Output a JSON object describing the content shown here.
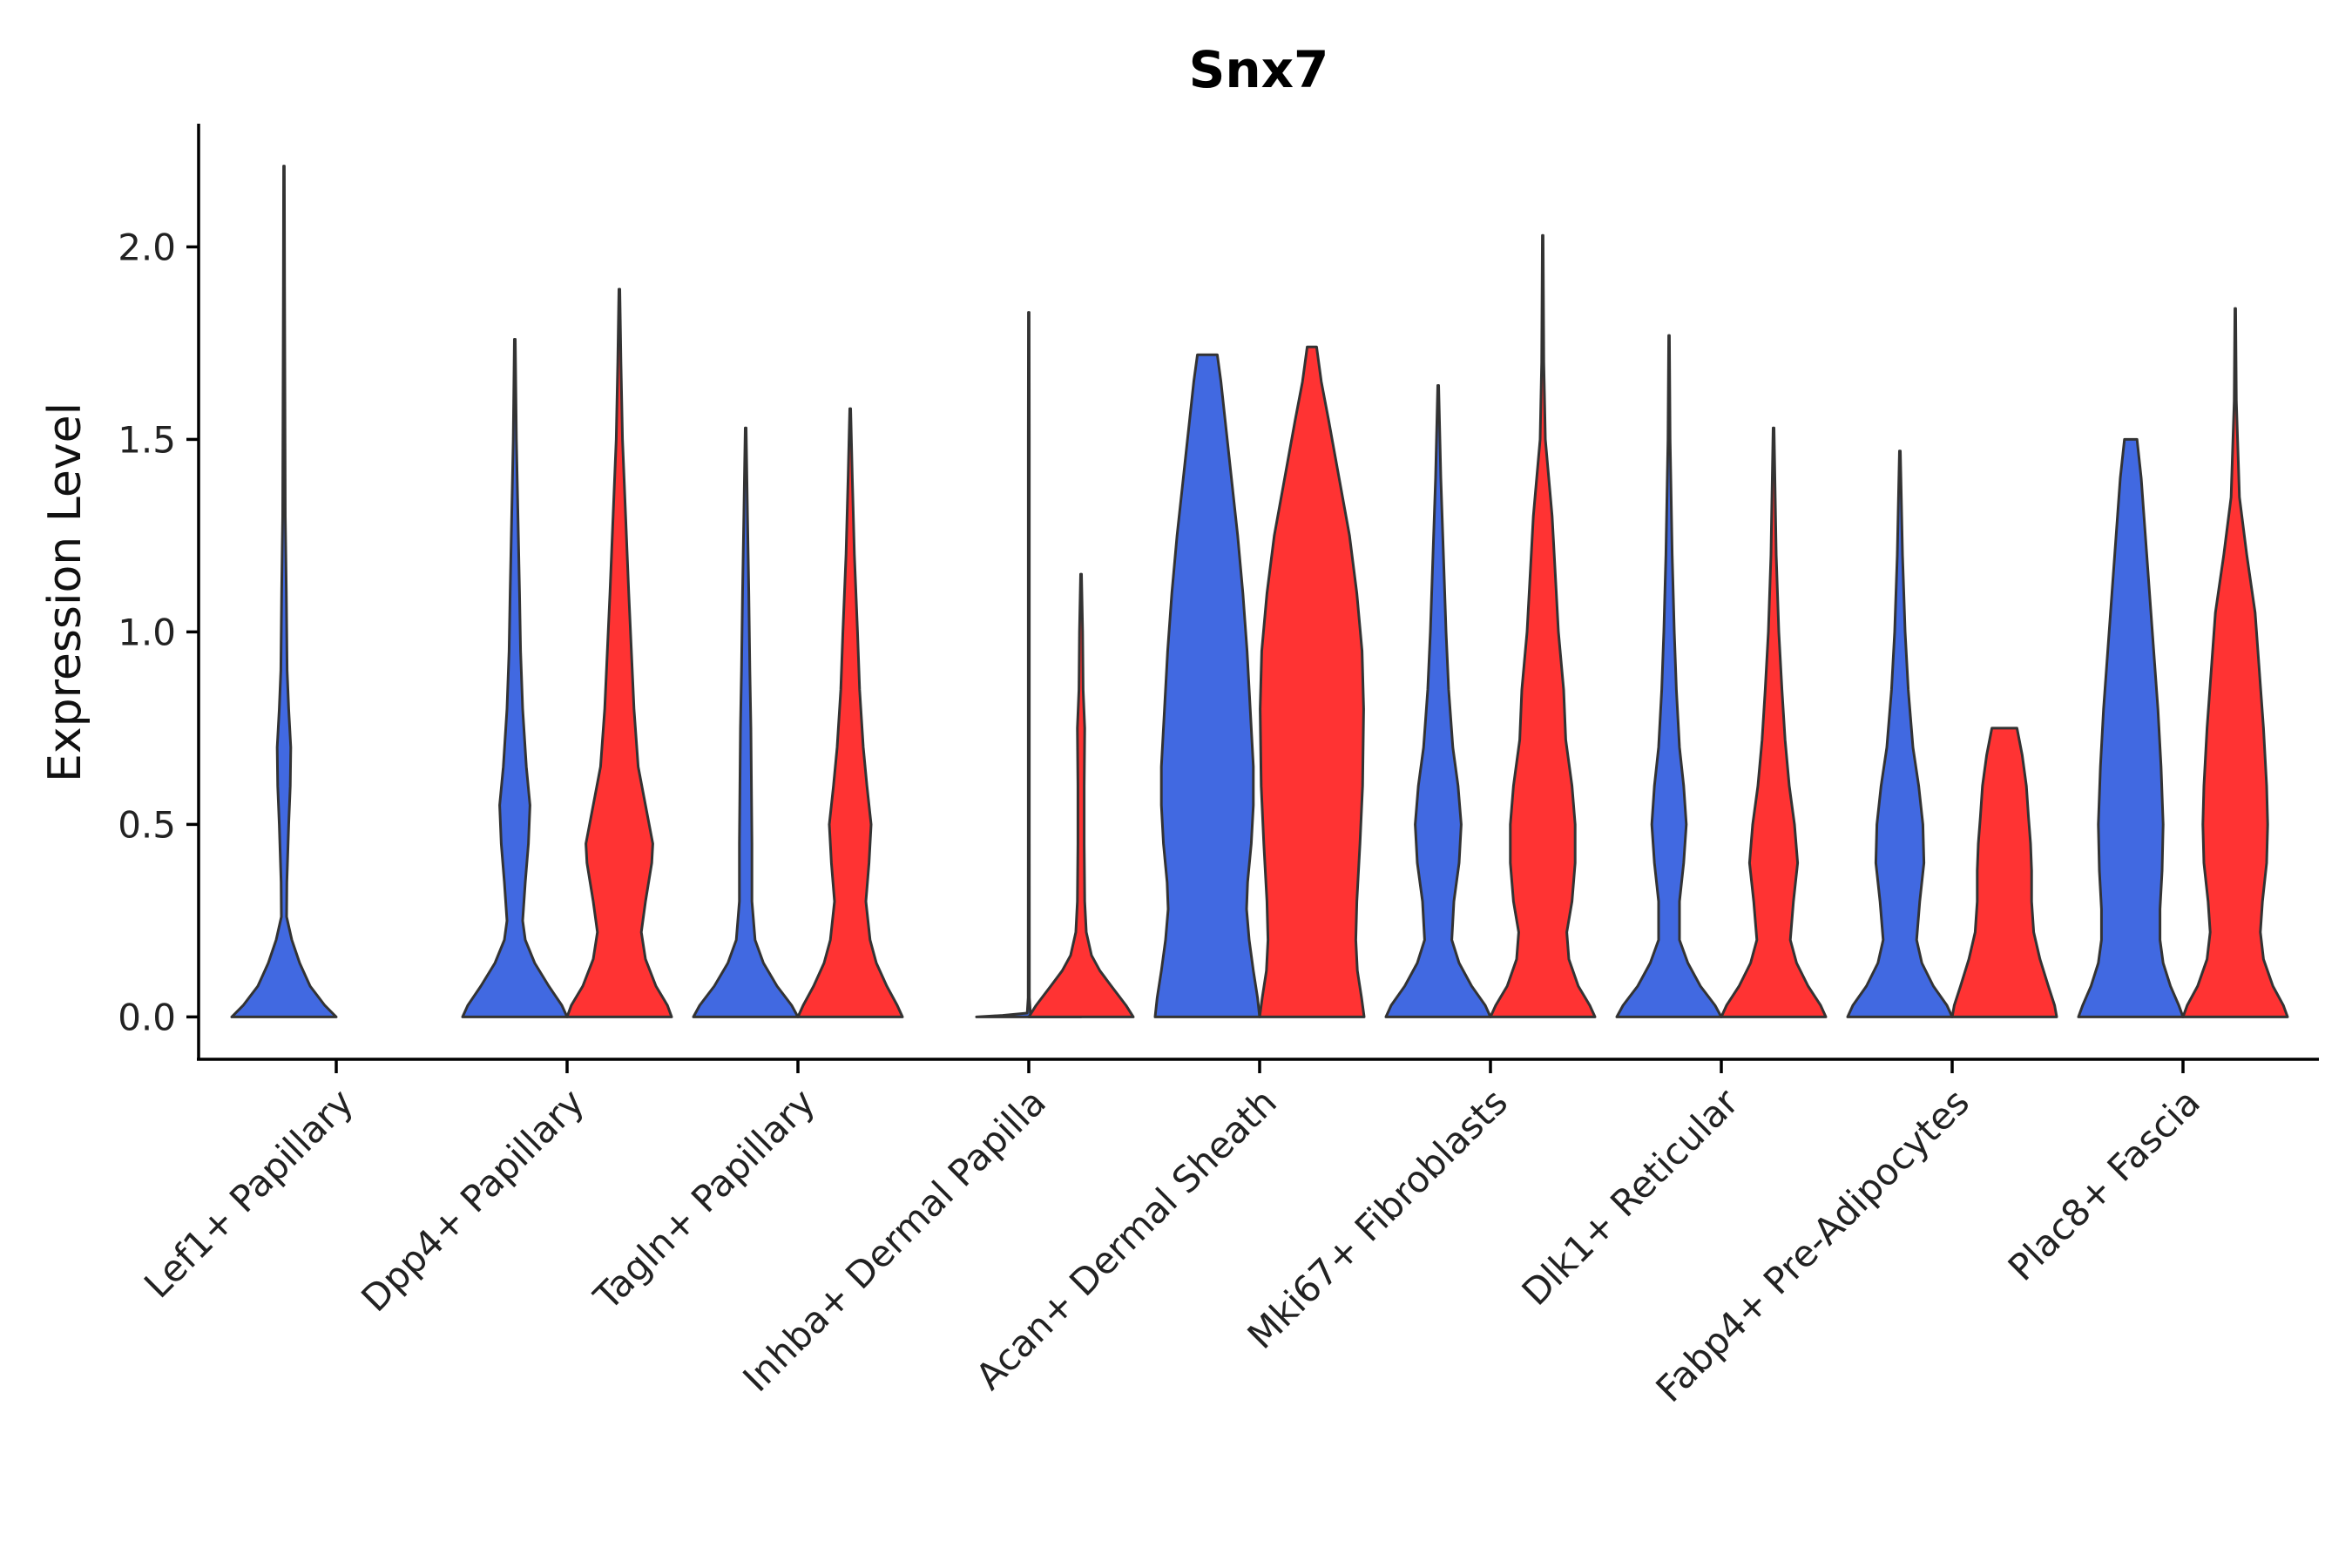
{
  "chart_data": {
    "type": "violin",
    "title": "Snx7",
    "xlabel": "",
    "ylabel": "Expression Level",
    "ylim": [
      -0.11,
      2.32
    ],
    "yticks": [
      0.0,
      0.5,
      1.0,
      1.5,
      2.0
    ],
    "ytick_labels": [
      "0.0",
      "0.5",
      "1.0",
      "1.5",
      "2.0"
    ],
    "colors": {
      "blue": "#4169E1",
      "red": "#FF3333",
      "outline": "#333333"
    },
    "categories": [
      "Lef1+ Papillary",
      "Dpp4+ Papillary",
      "Tagln+ Papillary",
      "Inhba+ Dermal Papilla",
      "Acan+ Dermal Sheath",
      "Mki67+ Fibroblasts",
      "Dlk1+ Reticular",
      "Fabp4+ Pre-Adipocytes",
      "Plac8+ Fascia"
    ],
    "violins": [
      {
        "category": "Lef1+ Papillary",
        "series": "blue",
        "max": 2.21,
        "profile": [
          [
            0,
            1.0
          ],
          [
            0.03,
            0.78
          ],
          [
            0.08,
            0.5
          ],
          [
            0.14,
            0.3
          ],
          [
            0.2,
            0.15
          ],
          [
            0.26,
            0.05
          ],
          [
            0.35,
            0.055
          ],
          [
            0.5,
            0.09
          ],
          [
            0.6,
            0.12
          ],
          [
            0.7,
            0.13
          ],
          [
            0.8,
            0.09
          ],
          [
            0.9,
            0.06
          ],
          [
            1.1,
            0.045
          ],
          [
            1.3,
            0.025
          ],
          [
            1.6,
            0.018
          ],
          [
            1.9,
            0.012
          ],
          [
            2.21,
            0.006
          ]
        ]
      },
      {
        "category": "Dpp4+ Papillary",
        "series": "blue",
        "max": 1.76,
        "profile": [
          [
            0,
            1.0
          ],
          [
            0.03,
            0.9
          ],
          [
            0.08,
            0.65
          ],
          [
            0.14,
            0.38
          ],
          [
            0.2,
            0.2
          ],
          [
            0.25,
            0.15
          ],
          [
            0.35,
            0.2
          ],
          [
            0.45,
            0.26
          ],
          [
            0.55,
            0.29
          ],
          [
            0.65,
            0.22
          ],
          [
            0.8,
            0.15
          ],
          [
            0.95,
            0.11
          ],
          [
            1.1,
            0.09
          ],
          [
            1.3,
            0.06
          ],
          [
            1.5,
            0.03
          ],
          [
            1.76,
            0.008
          ]
        ]
      },
      {
        "category": "Dpp4+ Papillary",
        "series": "red",
        "max": 1.89,
        "profile": [
          [
            0,
            1.0
          ],
          [
            0.03,
            0.92
          ],
          [
            0.08,
            0.7
          ],
          [
            0.15,
            0.5
          ],
          [
            0.22,
            0.42
          ],
          [
            0.3,
            0.5
          ],
          [
            0.4,
            0.62
          ],
          [
            0.45,
            0.64
          ],
          [
            0.55,
            0.5
          ],
          [
            0.65,
            0.36
          ],
          [
            0.8,
            0.28
          ],
          [
            0.95,
            0.23
          ],
          [
            1.1,
            0.18
          ],
          [
            1.3,
            0.12
          ],
          [
            1.5,
            0.06
          ],
          [
            1.7,
            0.03
          ],
          [
            1.89,
            0.008
          ]
        ]
      },
      {
        "category": "Tagln+ Papillary",
        "series": "blue",
        "max": 1.53,
        "profile": [
          [
            0,
            1.0
          ],
          [
            0.03,
            0.88
          ],
          [
            0.08,
            0.6
          ],
          [
            0.14,
            0.34
          ],
          [
            0.2,
            0.18
          ],
          [
            0.3,
            0.12
          ],
          [
            0.45,
            0.12
          ],
          [
            0.6,
            0.11
          ],
          [
            0.75,
            0.1
          ],
          [
            0.9,
            0.08
          ],
          [
            1.1,
            0.06
          ],
          [
            1.3,
            0.035
          ],
          [
            1.53,
            0.008
          ]
        ]
      },
      {
        "category": "Tagln+ Papillary",
        "series": "red",
        "max": 1.58,
        "profile": [
          [
            0,
            1.0
          ],
          [
            0.03,
            0.9
          ],
          [
            0.08,
            0.7
          ],
          [
            0.14,
            0.5
          ],
          [
            0.2,
            0.38
          ],
          [
            0.3,
            0.3
          ],
          [
            0.4,
            0.36
          ],
          [
            0.5,
            0.4
          ],
          [
            0.6,
            0.32
          ],
          [
            0.7,
            0.25
          ],
          [
            0.85,
            0.18
          ],
          [
            1.0,
            0.14
          ],
          [
            1.2,
            0.08
          ],
          [
            1.4,
            0.04
          ],
          [
            1.58,
            0.008
          ]
        ]
      },
      {
        "category": "Inhba+ Dermal Papilla",
        "series": "blue",
        "max": 1.83,
        "profile": [
          [
            0,
            1.0
          ],
          [
            0.004,
            0.5
          ],
          [
            0.01,
            0.03
          ],
          [
            0.05,
            0.012
          ],
          [
            0.5,
            0.01
          ],
          [
            1.0,
            0.01
          ],
          [
            1.5,
            0.01
          ],
          [
            1.83,
            0.006
          ]
        ]
      },
      {
        "category": "Inhba+ Dermal Papilla",
        "series": "red",
        "max": 1.15,
        "profile": [
          [
            0,
            1.0
          ],
          [
            0.03,
            0.86
          ],
          [
            0.08,
            0.58
          ],
          [
            0.12,
            0.36
          ],
          [
            0.16,
            0.2
          ],
          [
            0.22,
            0.1
          ],
          [
            0.3,
            0.07
          ],
          [
            0.45,
            0.06
          ],
          [
            0.6,
            0.06
          ],
          [
            0.75,
            0.07
          ],
          [
            0.85,
            0.04
          ],
          [
            1.0,
            0.03
          ],
          [
            1.15,
            0.008
          ]
        ]
      },
      {
        "category": "Acan+ Dermal Sheath",
        "series": "blue",
        "max": 1.72,
        "profile": [
          [
            0,
            1.0
          ],
          [
            0.05,
            0.96
          ],
          [
            0.12,
            0.88
          ],
          [
            0.2,
            0.8
          ],
          [
            0.28,
            0.75
          ],
          [
            0.35,
            0.77
          ],
          [
            0.45,
            0.84
          ],
          [
            0.55,
            0.88
          ],
          [
            0.65,
            0.88
          ],
          [
            0.8,
            0.82
          ],
          [
            0.95,
            0.76
          ],
          [
            1.1,
            0.68
          ],
          [
            1.25,
            0.58
          ],
          [
            1.4,
            0.46
          ],
          [
            1.55,
            0.34
          ],
          [
            1.65,
            0.26
          ],
          [
            1.72,
            0.19
          ]
        ]
      },
      {
        "category": "Acan+ Dermal Sheath",
        "series": "red",
        "max": 1.74,
        "profile": [
          [
            0,
            1.0
          ],
          [
            0.05,
            0.95
          ],
          [
            0.12,
            0.87
          ],
          [
            0.2,
            0.84
          ],
          [
            0.3,
            0.86
          ],
          [
            0.45,
            0.92
          ],
          [
            0.6,
            0.97
          ],
          [
            0.8,
            0.99
          ],
          [
            0.95,
            0.96
          ],
          [
            1.1,
            0.86
          ],
          [
            1.25,
            0.72
          ],
          [
            1.4,
            0.52
          ],
          [
            1.55,
            0.32
          ],
          [
            1.65,
            0.18
          ],
          [
            1.74,
            0.09
          ]
        ]
      },
      {
        "category": "Mki67+ Fibroblasts",
        "series": "blue",
        "max": 1.64,
        "profile": [
          [
            0,
            1.0
          ],
          [
            0.03,
            0.9
          ],
          [
            0.08,
            0.64
          ],
          [
            0.14,
            0.4
          ],
          [
            0.2,
            0.26
          ],
          [
            0.3,
            0.3
          ],
          [
            0.4,
            0.4
          ],
          [
            0.5,
            0.44
          ],
          [
            0.6,
            0.38
          ],
          [
            0.7,
            0.28
          ],
          [
            0.85,
            0.2
          ],
          [
            1.0,
            0.15
          ],
          [
            1.2,
            0.1
          ],
          [
            1.4,
            0.05
          ],
          [
            1.64,
            0.008
          ]
        ]
      },
      {
        "category": "Mki67+ Fibroblasts",
        "series": "red",
        "max": 2.03,
        "profile": [
          [
            0,
            1.0
          ],
          [
            0.03,
            0.9
          ],
          [
            0.08,
            0.68
          ],
          [
            0.15,
            0.5
          ],
          [
            0.22,
            0.46
          ],
          [
            0.3,
            0.56
          ],
          [
            0.4,
            0.62
          ],
          [
            0.5,
            0.62
          ],
          [
            0.6,
            0.56
          ],
          [
            0.72,
            0.44
          ],
          [
            0.85,
            0.4
          ],
          [
            1.0,
            0.3
          ],
          [
            1.15,
            0.24
          ],
          [
            1.3,
            0.18
          ],
          [
            1.5,
            0.05
          ],
          [
            1.7,
            0.02
          ],
          [
            2.03,
            0.006
          ]
        ]
      },
      {
        "category": "Dlk1+ Reticular",
        "series": "blue",
        "max": 1.77,
        "profile": [
          [
            0,
            1.0
          ],
          [
            0.03,
            0.88
          ],
          [
            0.08,
            0.6
          ],
          [
            0.14,
            0.36
          ],
          [
            0.2,
            0.2
          ],
          [
            0.3,
            0.2
          ],
          [
            0.4,
            0.28
          ],
          [
            0.5,
            0.33
          ],
          [
            0.6,
            0.28
          ],
          [
            0.7,
            0.2
          ],
          [
            0.85,
            0.14
          ],
          [
            1.0,
            0.1
          ],
          [
            1.2,
            0.06
          ],
          [
            1.5,
            0.02
          ],
          [
            1.77,
            0.006
          ]
        ]
      },
      {
        "category": "Dlk1+ Reticular",
        "series": "red",
        "max": 1.53,
        "profile": [
          [
            0,
            1.0
          ],
          [
            0.03,
            0.9
          ],
          [
            0.08,
            0.66
          ],
          [
            0.14,
            0.44
          ],
          [
            0.2,
            0.32
          ],
          [
            0.3,
            0.38
          ],
          [
            0.4,
            0.46
          ],
          [
            0.5,
            0.4
          ],
          [
            0.6,
            0.3
          ],
          [
            0.72,
            0.22
          ],
          [
            0.85,
            0.16
          ],
          [
            1.0,
            0.1
          ],
          [
            1.2,
            0.05
          ],
          [
            1.53,
            0.008
          ]
        ]
      },
      {
        "category": "Fabp4+ Pre-Adipocytes",
        "series": "blue",
        "max": 1.47,
        "profile": [
          [
            0,
            1.0
          ],
          [
            0.03,
            0.9
          ],
          [
            0.08,
            0.64
          ],
          [
            0.14,
            0.42
          ],
          [
            0.2,
            0.32
          ],
          [
            0.3,
            0.38
          ],
          [
            0.4,
            0.46
          ],
          [
            0.5,
            0.44
          ],
          [
            0.6,
            0.36
          ],
          [
            0.7,
            0.25
          ],
          [
            0.85,
            0.16
          ],
          [
            1.0,
            0.1
          ],
          [
            1.2,
            0.05
          ],
          [
            1.47,
            0.008
          ]
        ]
      },
      {
        "category": "Fabp4+ Pre-Adipocytes",
        "series": "red",
        "max": 0.75,
        "profile": [
          [
            0,
            1.0
          ],
          [
            0.03,
            0.96
          ],
          [
            0.08,
            0.84
          ],
          [
            0.15,
            0.68
          ],
          [
            0.22,
            0.56
          ],
          [
            0.3,
            0.52
          ],
          [
            0.38,
            0.52
          ],
          [
            0.45,
            0.5
          ],
          [
            0.52,
            0.46
          ],
          [
            0.6,
            0.42
          ],
          [
            0.68,
            0.34
          ],
          [
            0.75,
            0.24
          ]
        ]
      },
      {
        "category": "Plac8+ Fascia",
        "series": "blue",
        "max": 1.5,
        "profile": [
          [
            0,
            1.0
          ],
          [
            0.03,
            0.92
          ],
          [
            0.08,
            0.76
          ],
          [
            0.14,
            0.62
          ],
          [
            0.2,
            0.56
          ],
          [
            0.28,
            0.56
          ],
          [
            0.38,
            0.6
          ],
          [
            0.5,
            0.62
          ],
          [
            0.65,
            0.58
          ],
          [
            0.8,
            0.52
          ],
          [
            0.95,
            0.44
          ],
          [
            1.1,
            0.36
          ],
          [
            1.25,
            0.28
          ],
          [
            1.4,
            0.2
          ],
          [
            1.5,
            0.12
          ]
        ]
      },
      {
        "category": "Plac8+ Fascia",
        "series": "red",
        "max": 1.84,
        "profile": [
          [
            0,
            1.0
          ],
          [
            0.03,
            0.92
          ],
          [
            0.08,
            0.72
          ],
          [
            0.15,
            0.54
          ],
          [
            0.22,
            0.48
          ],
          [
            0.3,
            0.52
          ],
          [
            0.4,
            0.6
          ],
          [
            0.5,
            0.62
          ],
          [
            0.6,
            0.6
          ],
          [
            0.75,
            0.54
          ],
          [
            0.9,
            0.46
          ],
          [
            1.05,
            0.38
          ],
          [
            1.2,
            0.22
          ],
          [
            1.35,
            0.08
          ],
          [
            1.6,
            0.02
          ],
          [
            1.84,
            0.006
          ]
        ]
      }
    ]
  }
}
